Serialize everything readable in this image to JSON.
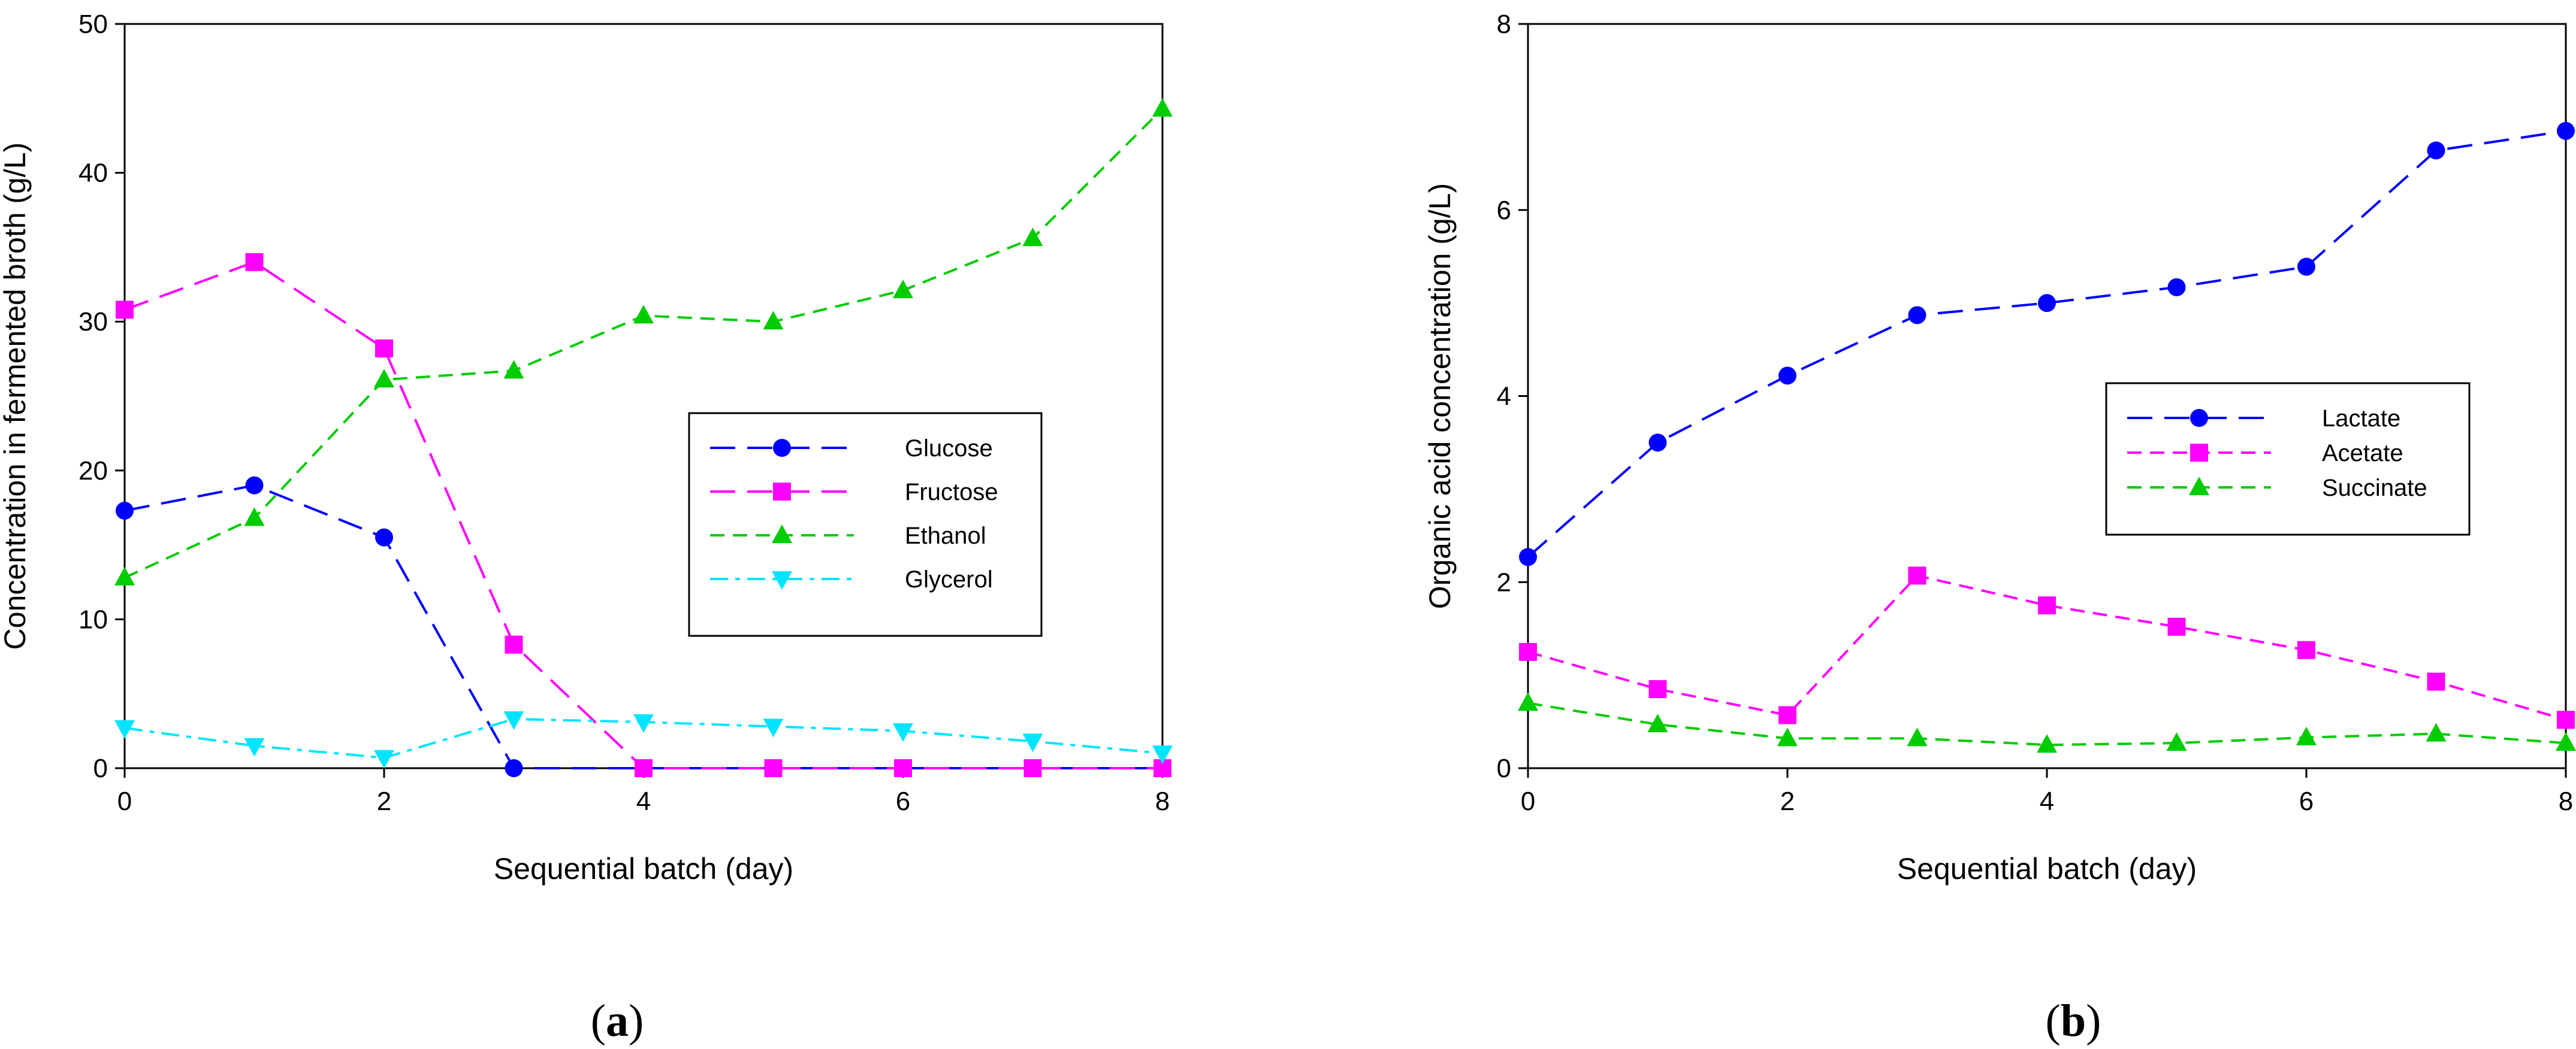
{
  "chart_data": [
    {
      "panel": "(a)",
      "panel_letter": "a",
      "type": "line",
      "title": "",
      "xlabel": "Sequential batch (day)",
      "ylabel": "Concentration in fermented broth (g/L)",
      "xlim": [
        0,
        8
      ],
      "ylim": [
        0,
        50
      ],
      "xticks": [
        0,
        2,
        4,
        6,
        8
      ],
      "yticks": [
        0,
        10,
        20,
        30,
        40,
        50
      ],
      "legend_position": "center-right",
      "x": [
        0,
        1,
        2,
        3,
        4,
        5,
        6,
        7,
        8
      ],
      "series": [
        {
          "name": "Glucose",
          "color": "#0000ff",
          "marker": "circle",
          "dash": "long-dash",
          "values": [
            17.3,
            19.0,
            15.5,
            0,
            0,
            0,
            0,
            0,
            0
          ]
        },
        {
          "name": "Fructose",
          "color": "#ff00ff",
          "marker": "square",
          "dash": "long-dash",
          "values": [
            30.8,
            34.0,
            28.2,
            8.3,
            0,
            0,
            0,
            0,
            0
          ]
        },
        {
          "name": "Ethanol",
          "color": "#00cc00",
          "marker": "triangle-up",
          "dash": "short-dash",
          "values": [
            12.8,
            16.8,
            26.1,
            26.7,
            30.4,
            30.0,
            32.1,
            35.6,
            44.3
          ]
        },
        {
          "name": "Glycerol",
          "color": "#00e5ff",
          "marker": "triangle-down",
          "dash": "dash-dot",
          "values": [
            2.7,
            1.5,
            0.7,
            3.3,
            3.1,
            2.8,
            2.5,
            1.8,
            1.0
          ]
        }
      ]
    },
    {
      "panel": "(b)",
      "panel_letter": "b",
      "type": "line",
      "title": "",
      "xlabel": "Sequential batch (day)",
      "ylabel": "Organic acid concentration (g/L)",
      "xlim": [
        0,
        8
      ],
      "ylim": [
        0,
        8
      ],
      "xticks": [
        0,
        2,
        4,
        6,
        8
      ],
      "yticks": [
        0,
        2,
        4,
        6,
        8
      ],
      "legend_position": "center-right",
      "x": [
        0,
        1,
        2,
        3,
        4,
        5,
        6,
        7,
        8
      ],
      "series": [
        {
          "name": "Lactate",
          "color": "#0000ff",
          "marker": "circle",
          "dash": "long-dash",
          "values": [
            2.27,
            3.5,
            4.22,
            4.87,
            5.0,
            5.17,
            5.39,
            6.64,
            6.85
          ]
        },
        {
          "name": "Acetate",
          "color": "#ff00ff",
          "marker": "square",
          "dash": "short-dash",
          "values": [
            1.25,
            0.85,
            0.57,
            2.07,
            1.75,
            1.52,
            1.27,
            0.93,
            0.52
          ]
        },
        {
          "name": "Succinate",
          "color": "#00cc00",
          "marker": "triangle-up",
          "dash": "short-dash",
          "values": [
            0.7,
            0.47,
            0.32,
            0.32,
            0.25,
            0.27,
            0.33,
            0.37,
            0.27
          ]
        }
      ]
    }
  ]
}
